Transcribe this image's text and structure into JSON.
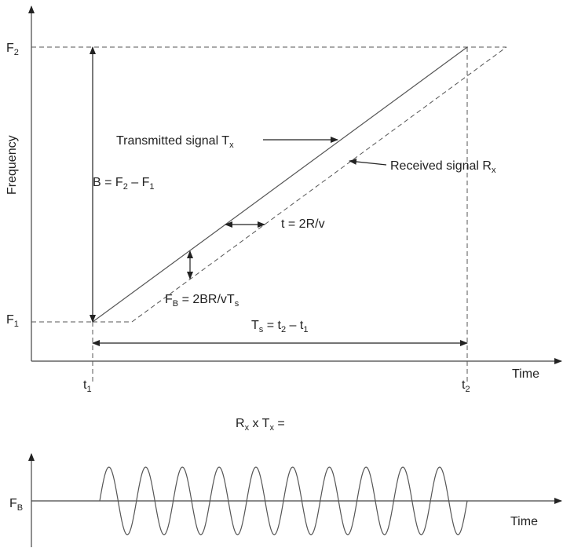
{
  "labels": {
    "f2": [
      "F",
      "2"
    ],
    "f1": [
      "F",
      "1"
    ],
    "frequency": [
      "Frequency"
    ],
    "time_top": [
      "Time"
    ],
    "t1": [
      "t",
      "1"
    ],
    "t2": [
      "t",
      "2"
    ],
    "transmitted": [
      "Transmitted signal T",
      "x"
    ],
    "received": [
      "Received signal R",
      "x"
    ],
    "bandwidth": [
      "B = F",
      "2",
      " – F",
      "1"
    ],
    "delay": [
      "t = 2R/v"
    ],
    "beat": [
      "F",
      "B",
      " = 2BR/vT",
      "s"
    ],
    "sweep": [
      "T",
      "s",
      " = t",
      "2",
      " – t",
      "1"
    ],
    "product": [
      "R",
      "x",
      " x T",
      "x",
      " ="
    ],
    "fb_bottom": [
      "F",
      "B"
    ],
    "time_bottom": [
      "Time"
    ]
  }
}
